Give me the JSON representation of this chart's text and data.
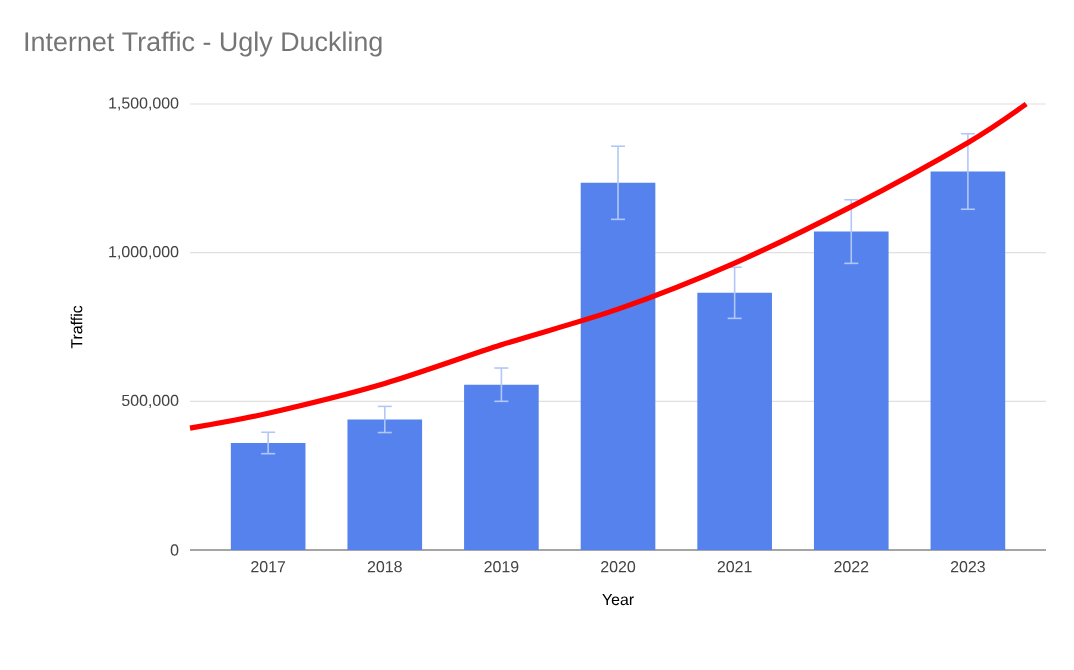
{
  "chart_data": {
    "type": "bar",
    "title": "Internet Traffic - Ugly Duckling",
    "xlabel": "Year",
    "ylabel": "Traffic",
    "x": [
      2017,
      2018,
      2019,
      2020,
      2021,
      2022,
      2023
    ],
    "xlim": [
      2016.33,
      2023.67
    ],
    "xticks": [
      2017,
      2018,
      2019,
      2020,
      2021,
      2022,
      2023
    ],
    "ylim": [
      0,
      1500000
    ],
    "yticks": [
      0,
      {
        "value": 500000,
        "label": "500,000"
      },
      {
        "value": 1000000,
        "label": "1,000,000"
      },
      {
        "value": 1500000,
        "label": "1,500,000"
      }
    ],
    "grid": "y",
    "series": [
      {
        "color": "#5582ed",
        "values": [
          360000,
          439000,
          556000,
          1235000,
          865000,
          1071000,
          1273000
        ],
        "errors": [
          36000,
          44000,
          56000,
          123000,
          86000,
          107000,
          127000
        ]
      },
      {
        "type": "line",
        "color": "#ff0000",
        "x": [
          2016.33,
          2017,
          2018,
          2019,
          2020,
          2021,
          2022,
          2023,
          2023.5
        ],
        "values": [
          410000,
          460000,
          560000,
          690000,
          810000,
          965000,
          1155000,
          1370000,
          1500000
        ]
      }
    ]
  }
}
